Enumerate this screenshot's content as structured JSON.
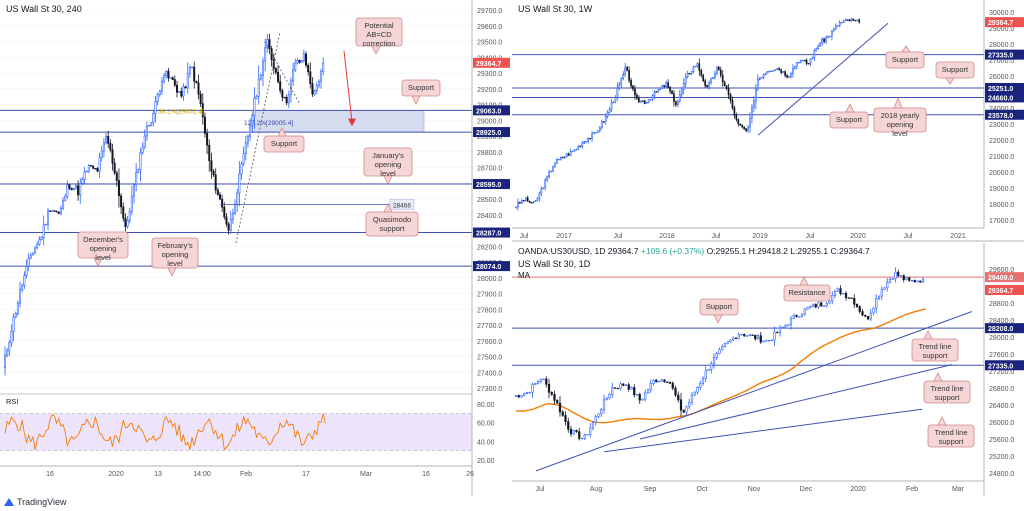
{
  "colors": {
    "up": "#2962ff",
    "down": "#131722",
    "price": "#ef5350",
    "level": "#3f51b5",
    "callout_bg": "#f5d5d5",
    "callout_border": "#d08a8a",
    "zone": "#d6dcf0",
    "ma": "#f57c00",
    "rsi_bg": "#ede4fb",
    "rsi_line": "#f57c00"
  },
  "panels": {
    "h4": {
      "title": "US Wall St 30, 240",
      "price_label": "29364.7",
      "level_labels": [
        "29063.0",
        "28925.0",
        "28595.0",
        "28287.0",
        "28074.0"
      ],
      "fib_labels": [
        "38.2%[29051.4]",
        "127.2%[29005.4]"
      ],
      "qm_label": "28466",
      "rsi_title": "RSI",
      "callouts": [
        "Potential AB=CD correction",
        "Support",
        "Support",
        "January's opening level",
        "Quasimodo support",
        "December's opening level",
        "February's opening level"
      ],
      "chart_data": {
        "type": "line",
        "title": "US Wall St 30, 240",
        "price_axis": [
          "29700.0",
          "29600.0",
          "29500.0",
          "29400.0",
          "29300.0",
          "29200.0",
          "29100.0",
          "29000.0",
          "28900.0",
          "28800.0",
          "28700.0",
          "28600.0",
          "28500.0",
          "28400.0",
          "28300.0",
          "28200.0",
          "28100.0",
          "28000.0",
          "27900.0",
          "27800.0",
          "27700.0",
          "27600.0",
          "27500.0",
          "27400.0",
          "27300.0"
        ],
        "time_axis": [
          "16",
          "2020",
          "13",
          "14:00",
          "Feb",
          "17",
          "Mar",
          "16",
          "26"
        ],
        "rsi_axis": [
          "80.00",
          "60.00",
          "40.00",
          "20.00"
        ],
        "levels": [
          29063.0,
          28925.0,
          28595.0,
          28287.0,
          28074.0
        ],
        "last_price": 29364.7
      }
    },
    "w1": {
      "title": "US Wall St 30, 1W",
      "price_label": "29364.7",
      "level_labels": [
        "27335.0",
        "25251.0",
        "24660.0",
        "23578.0"
      ],
      "callouts": [
        "Support",
        "Support",
        "Support",
        "2018 yearly opening level"
      ],
      "chart_data": {
        "type": "line",
        "title": "US Wall St 30, 1W",
        "price_axis": [
          "30000.0",
          "29000.0",
          "28000.0",
          "27000.0",
          "26000.0",
          "25000.0",
          "24000.0",
          "23000.0",
          "22000.0",
          "21000.0",
          "20000.0",
          "19000.0",
          "18000.0",
          "17000.0"
        ],
        "time_axis": [
          "Jul",
          "2017",
          "Jul",
          "2018",
          "Jul",
          "2019",
          "Jul",
          "2020",
          "Jul",
          "2021"
        ],
        "levels": [
          27335.0,
          25251.0,
          24660.0,
          23578.0
        ],
        "last_price": 29364.7
      }
    },
    "d1": {
      "ohlc_symbol": "OANDA:US30USD, 1D",
      "ohlc_close": "29364.7",
      "ohlc_change": "+109.6 (+0.37%)",
      "ohlc_o": "29255.1",
      "ohlc_h": "29418.2",
      "ohlc_l": "29255.1",
      "ohlc_c": "29364.7",
      "title": "US Wall St 30, 1D",
      "ma_label": "MA",
      "price_label": "29364.7",
      "resistance_label": "29409.0",
      "level_labels": [
        "28208.0",
        "27335.0"
      ],
      "callouts": [
        "Resistance",
        "Support",
        "Trend line support",
        "Trend line support",
        "Trend line support"
      ],
      "chart_data": {
        "type": "line",
        "title": "US Wall St 30, 1D",
        "price_axis": [
          "29600.0",
          "28800.0",
          "28400.0",
          "28000.0",
          "27600.0",
          "27200.0",
          "26800.0",
          "26400.0",
          "26000.0",
          "25600.0",
          "25200.0",
          "24800.0"
        ],
        "time_axis": [
          "Jul",
          "Aug",
          "Sep",
          "Oct",
          "Nov",
          "Dec",
          "2020",
          "Feb",
          "Mar"
        ],
        "levels": [
          29409.0,
          28208.0,
          27335.0
        ],
        "last_price": 29364.7
      }
    }
  },
  "footer": {
    "brand": "TradingView"
  }
}
